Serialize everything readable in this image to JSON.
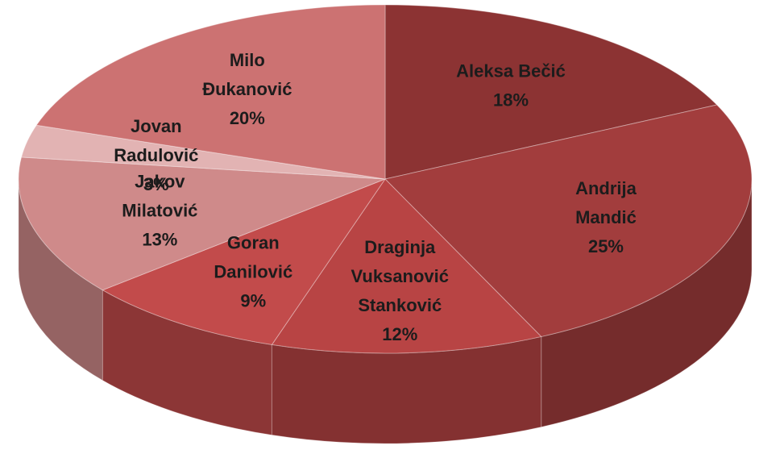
{
  "chart_data": {
    "type": "pie",
    "categories": [
      "Aleksa Bečić",
      "Andrija Mandić",
      "Draginja Vuksanović Stanković",
      "Goran Danilović",
      "Jakov Milatović",
      "Jovan Radulović",
      "Milo Đukanović"
    ],
    "values": [
      18,
      25,
      12,
      9,
      13,
      3,
      20
    ],
    "value_labels": [
      "18%",
      "25%",
      "12%",
      "9%",
      "13%",
      "3%",
      "20%"
    ],
    "colors": [
      "#8c3333",
      "#a23d3d",
      "#b84444",
      "#c24b4b",
      "#cf8a8a",
      "#e2b3b3",
      "#cc7272"
    ]
  }
}
